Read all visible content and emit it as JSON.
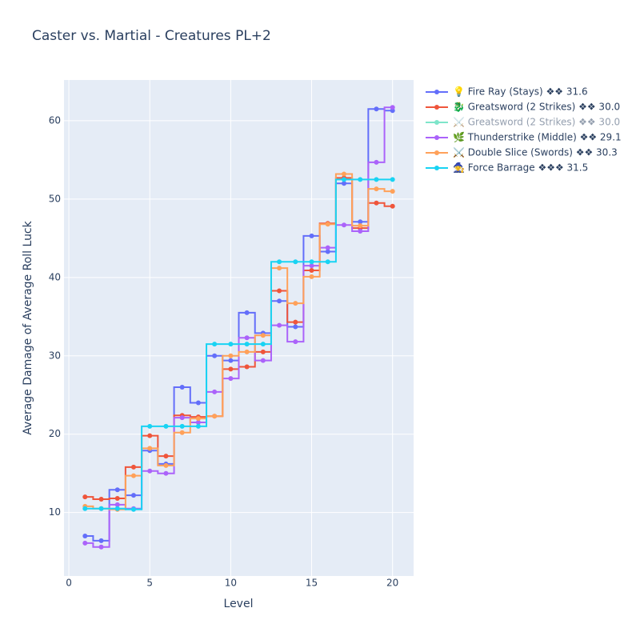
{
  "chart_data": {
    "type": "line",
    "line_shape": "hvh",
    "title": "Caster vs. Martial - Creatures PL+2",
    "x_label": "Level",
    "y_label": "Average Damage of Average Roll Luck",
    "x": [
      1,
      2,
      3,
      4,
      5,
      6,
      7,
      8,
      9,
      10,
      11,
      12,
      13,
      14,
      15,
      16,
      17,
      18,
      19,
      20
    ],
    "xlim": [
      -0.3,
      21.3
    ],
    "xticks": [
      0,
      5,
      10,
      15,
      20
    ],
    "ylim": [
      1.9,
      65.2
    ],
    "yticks": [
      10,
      20,
      30,
      40,
      50,
      60
    ],
    "grid": true,
    "legend": "right",
    "series": [
      {
        "name": "💡 Fire Ray (Stays) ❖❖ 31.6",
        "color": "#636efa",
        "values": [
          7.0,
          6.4,
          12.9,
          12.2,
          17.9,
          16.2,
          26.0,
          24.0,
          30.0,
          29.4,
          35.5,
          32.9,
          37.0,
          33.7,
          45.3,
          43.3,
          52.0,
          47.1,
          61.5,
          61.3
        ]
      },
      {
        "name": "🐉 Greatsword (2 Strikes) ❖❖ 30.0",
        "color": "#ef553b",
        "values": [
          12.0,
          11.7,
          11.8,
          15.8,
          19.8,
          17.2,
          22.4,
          22.2,
          22.3,
          28.3,
          28.6,
          30.5,
          38.3,
          34.3,
          40.9,
          46.9,
          52.7,
          46.3,
          49.5,
          49.1
        ]
      },
      {
        "name": "⚔️ Greatsword (2 Strikes) ❖❖ 30.0",
        "color": "#00cc96",
        "visible": "legendonly"
      },
      {
        "name": "🌿 Thunderstrike (Middle) ❖❖ 29.1",
        "color": "#ab63fa",
        "values": [
          6.1,
          5.6,
          11.0,
          10.5,
          15.3,
          15.0,
          22.1,
          21.5,
          25.4,
          27.1,
          32.3,
          29.4,
          33.9,
          31.8,
          41.5,
          43.8,
          46.7,
          45.9,
          54.7,
          61.7
        ]
      },
      {
        "name": "⚔️ Double Slice (Swords) ❖❖ 30.3",
        "color": "#ffa15a",
        "values": [
          10.8,
          10.5,
          10.4,
          14.7,
          18.2,
          16.0,
          20.2,
          22.0,
          22.3,
          30.0,
          30.5,
          32.6,
          41.2,
          36.7,
          40.1,
          46.8,
          53.2,
          46.6,
          51.3,
          51.0
        ]
      },
      {
        "name": "🧙 Force Barrage ❖❖❖ 31.5",
        "color": "#19d3f3",
        "values": [
          10.5,
          10.5,
          10.5,
          10.4,
          21.0,
          21.0,
          21.0,
          21.0,
          31.5,
          31.5,
          31.5,
          31.5,
          42.0,
          42.0,
          42.0,
          42.0,
          52.5,
          52.5,
          52.5,
          52.5
        ]
      }
    ]
  }
}
